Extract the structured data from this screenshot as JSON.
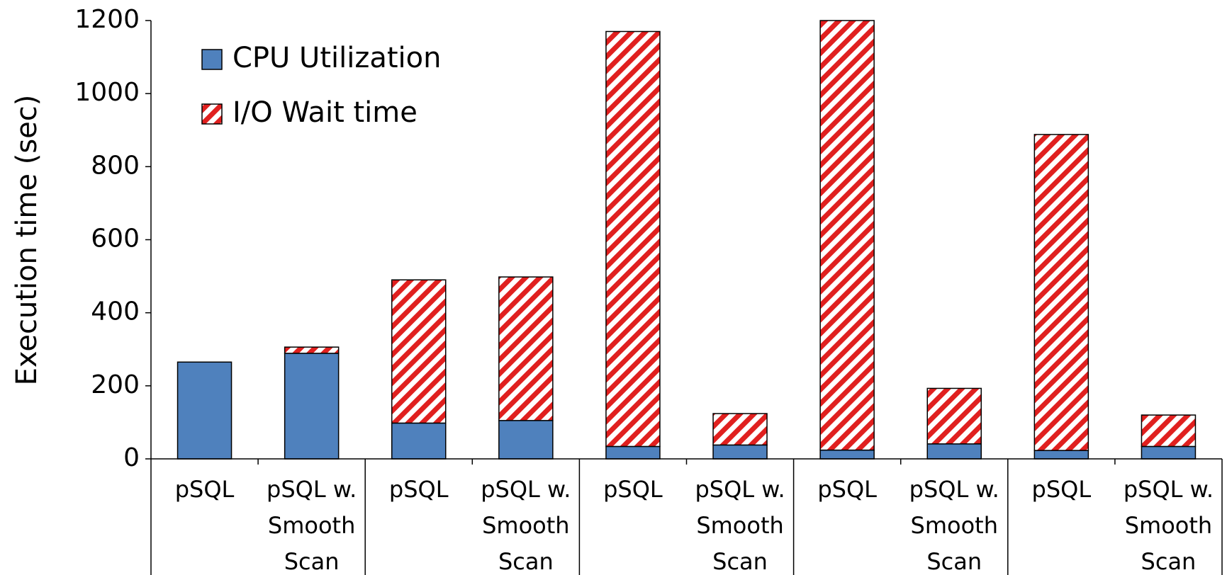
{
  "chart_data": {
    "type": "stacked_bar",
    "y_label": "Execution time (sec)",
    "categories": [
      "pSQL",
      "pSQL w. Smooth Scan",
      "pSQL",
      "pSQL w. Smooth Scan",
      "pSQL",
      "pSQL w. Smooth Scan",
      "pSQL",
      "pSQL w. Smooth Scan",
      "pSQL",
      "pSQL w. Smooth Scan"
    ],
    "series": [
      {
        "name": "CPU Utilization",
        "color": "#4f81bd",
        "values": [
          265,
          289,
          98,
          105,
          34,
          38,
          24,
          41,
          23,
          34
        ]
      },
      {
        "name": "I/O Wait time",
        "color": "#e0201f",
        "pattern": "hatch",
        "values": [
          0,
          17,
          392,
          393,
          1136,
          86,
          1176,
          152,
          865,
          86
        ]
      }
    ],
    "ylim": [
      0,
      1200
    ],
    "yticks": [
      0,
      200,
      400,
      600,
      800,
      1000,
      1200
    ],
    "grid": false,
    "legend": "top-left"
  }
}
